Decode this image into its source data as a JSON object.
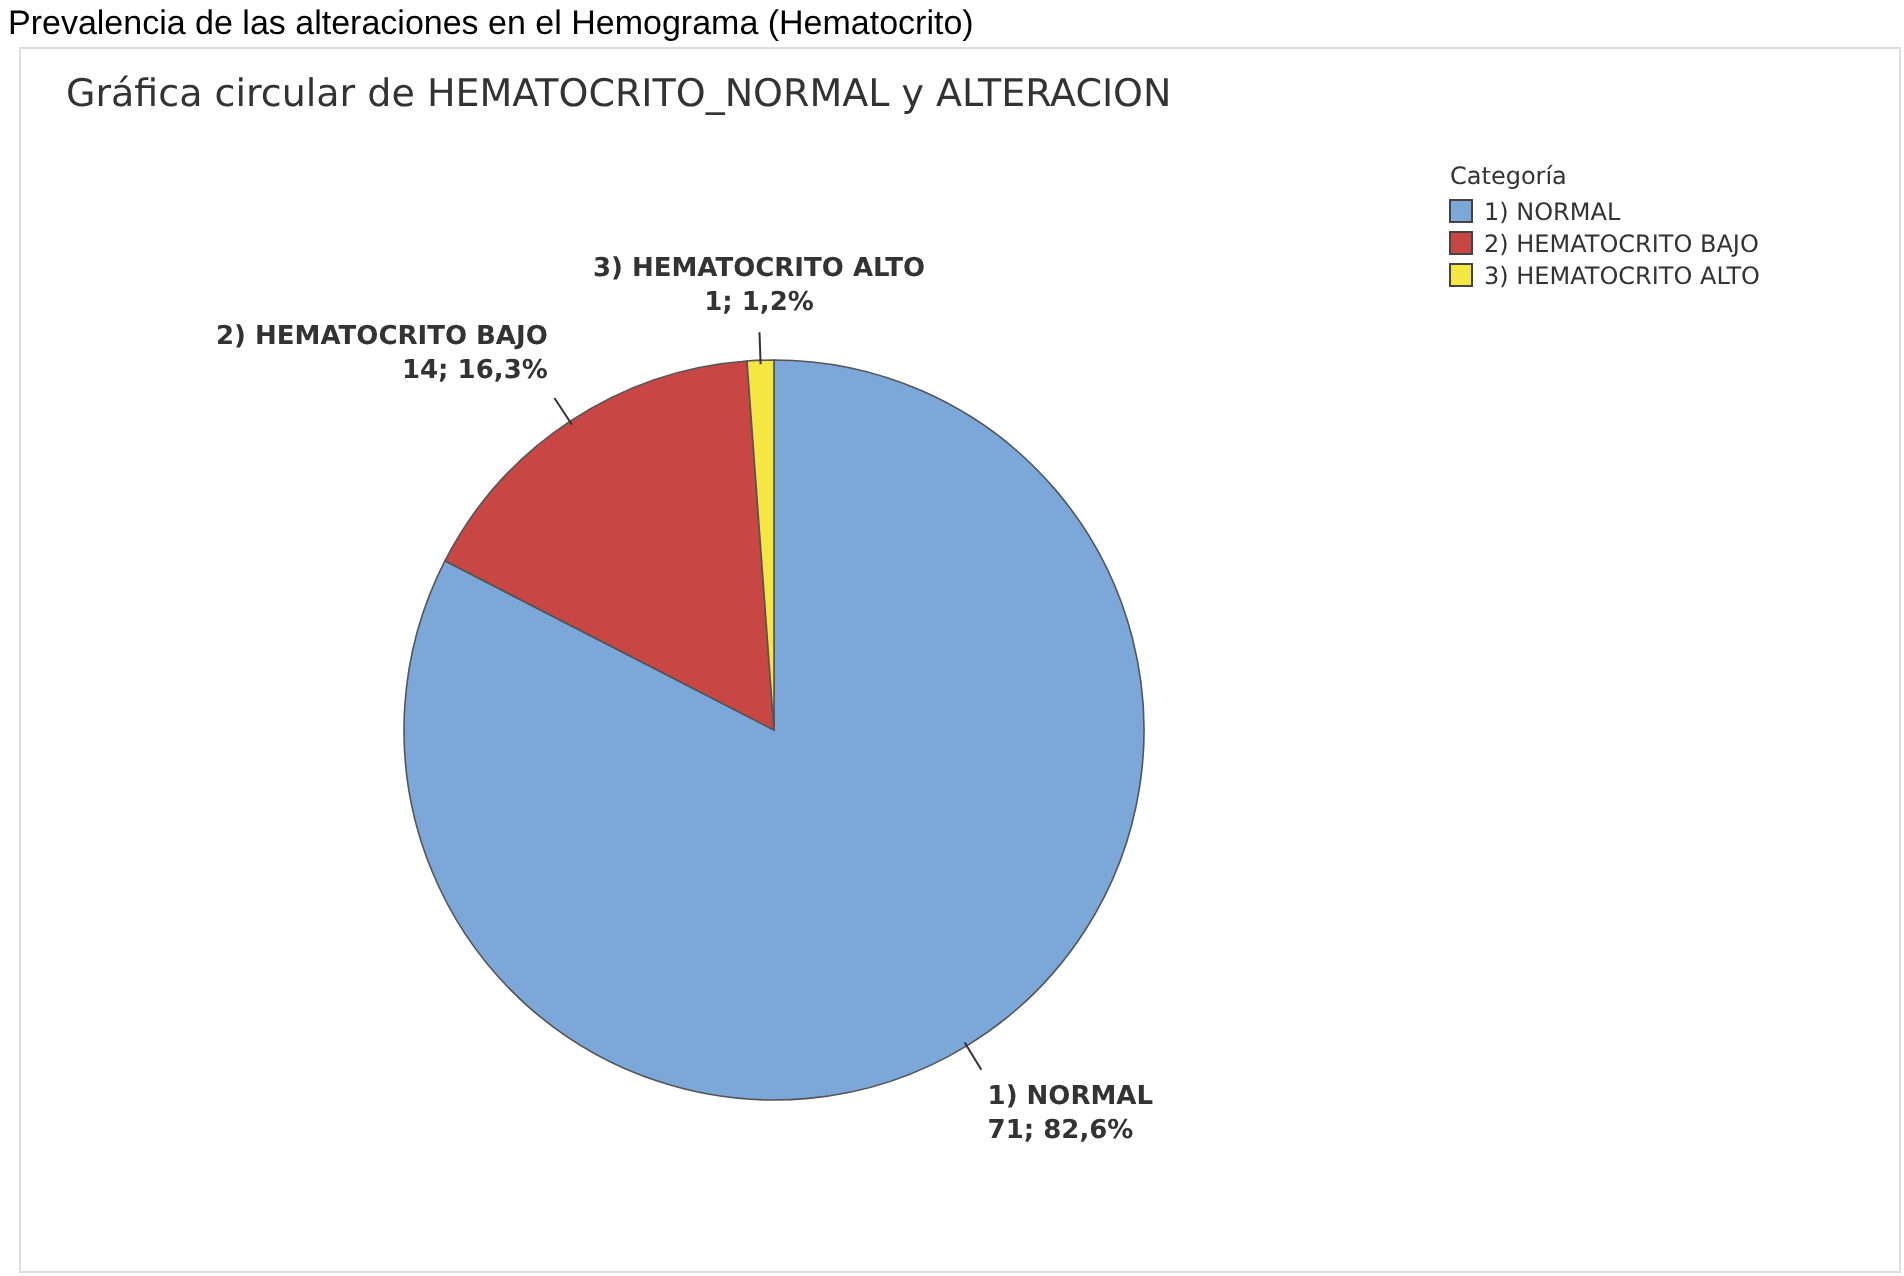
{
  "chart_data": {
    "type": "pie",
    "title": "Gráfica circular de HEMATOCRITO_NORMAL y ALTERACION",
    "annotations": [
      "Prevalencia de las alteraciones en el Hemograma (Hematocrito)"
    ],
    "categories": [
      "1) NORMAL",
      "2) HEMATOCRITO BAJO",
      "3) HEMATOCRITO ALTO"
    ],
    "values": [
      71,
      14,
      1
    ],
    "value_labels": [
      "71; 82,6%",
      "14; 16,3%",
      "1; 1,2%"
    ],
    "colors": [
      "#7ba7d9",
      "#c84644",
      "#f5e642"
    ],
    "legend_title": "Categoría",
    "legend": "top right"
  }
}
